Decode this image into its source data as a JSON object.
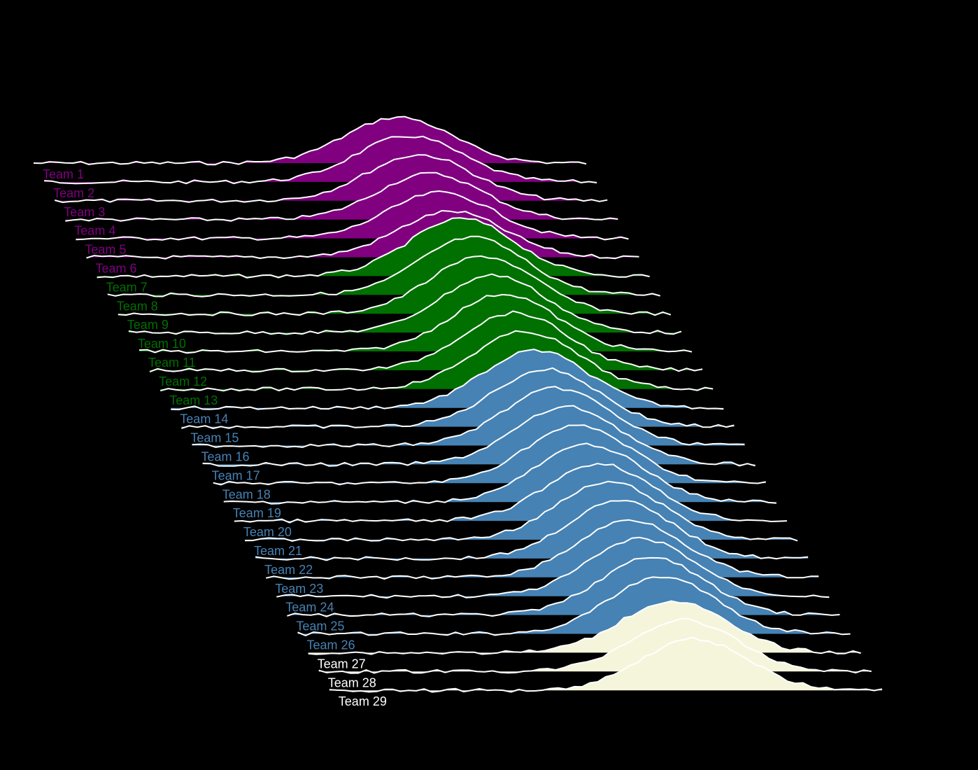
{
  "chart_data": {
    "type": "area",
    "variant": "ridgeline",
    "background": "#000000",
    "line_color": "#ffffff",
    "groups": [
      {
        "color": "#800080",
        "series": [
          "Team 1",
          "Team 2",
          "Team 3",
          "Team 4",
          "Team 5",
          "Team 6"
        ]
      },
      {
        "color": "#007000",
        "series": [
          "Team 7",
          "Team 8",
          "Team 9",
          "Team 10",
          "Team 11",
          "Team 12",
          "Team 13"
        ]
      },
      {
        "color": "#4682b4",
        "series": [
          "Team 14",
          "Team 15",
          "Team 16",
          "Team 17",
          "Team 18",
          "Team 19",
          "Team 20",
          "Team 21",
          "Team 22",
          "Team 23",
          "Team 24",
          "Team 25",
          "Team 26"
        ]
      },
      {
        "color": "#f5f5dc",
        "series": [
          "Team 27",
          "Team 28",
          "Team 29"
        ]
      }
    ],
    "series": [
      {
        "name": "Team 1",
        "peak_x": 0.66,
        "peak_height": 0.32
      },
      {
        "name": "Team 2",
        "peak_x": 0.66,
        "peak_height": 0.32
      },
      {
        "name": "Team 3",
        "peak_x": 0.66,
        "peak_height": 0.32
      },
      {
        "name": "Team 4",
        "peak_x": 0.66,
        "peak_height": 0.32
      },
      {
        "name": "Team 5",
        "peak_x": 0.66,
        "peak_height": 0.32
      },
      {
        "name": "Team 6",
        "peak_x": 0.66,
        "peak_height": 0.32
      },
      {
        "name": "Team 7",
        "peak_x": 0.66,
        "peak_height": 0.4
      },
      {
        "name": "Team 8",
        "peak_x": 0.66,
        "peak_height": 0.4
      },
      {
        "name": "Team 9",
        "peak_x": 0.66,
        "peak_height": 0.4
      },
      {
        "name": "Team 10",
        "peak_x": 0.66,
        "peak_height": 0.4
      },
      {
        "name": "Team 11",
        "peak_x": 0.66,
        "peak_height": 0.4
      },
      {
        "name": "Team 12",
        "peak_x": 0.66,
        "peak_height": 0.4
      },
      {
        "name": "Team 13",
        "peak_x": 0.66,
        "peak_height": 0.4
      },
      {
        "name": "Team 14",
        "peak_x": 0.66,
        "peak_height": 0.4
      },
      {
        "name": "Team 15",
        "peak_x": 0.66,
        "peak_height": 0.4
      },
      {
        "name": "Team 16",
        "peak_x": 0.66,
        "peak_height": 0.4
      },
      {
        "name": "Team 17",
        "peak_x": 0.66,
        "peak_height": 0.4
      },
      {
        "name": "Team 18",
        "peak_x": 0.66,
        "peak_height": 0.4
      },
      {
        "name": "Team 19",
        "peak_x": 0.66,
        "peak_height": 0.4
      },
      {
        "name": "Team 20",
        "peak_x": 0.66,
        "peak_height": 0.4
      },
      {
        "name": "Team 21",
        "peak_x": 0.66,
        "peak_height": 0.4
      },
      {
        "name": "Team 22",
        "peak_x": 0.66,
        "peak_height": 0.4
      },
      {
        "name": "Team 23",
        "peak_x": 0.66,
        "peak_height": 0.4
      },
      {
        "name": "Team 24",
        "peak_x": 0.66,
        "peak_height": 0.4
      },
      {
        "name": "Team 25",
        "peak_x": 0.66,
        "peak_height": 0.4
      },
      {
        "name": "Team 26",
        "peak_x": 0.66,
        "peak_height": 0.4
      },
      {
        "name": "Team 27",
        "peak_x": 0.66,
        "peak_height": 0.36
      },
      {
        "name": "Team 28",
        "peak_x": 0.66,
        "peak_height": 0.36
      },
      {
        "name": "Team 29",
        "peak_x": 0.66,
        "peak_height": 0.36
      }
    ],
    "title": "",
    "xlabel": "",
    "ylabel": "",
    "grid": false,
    "legend": "none"
  }
}
